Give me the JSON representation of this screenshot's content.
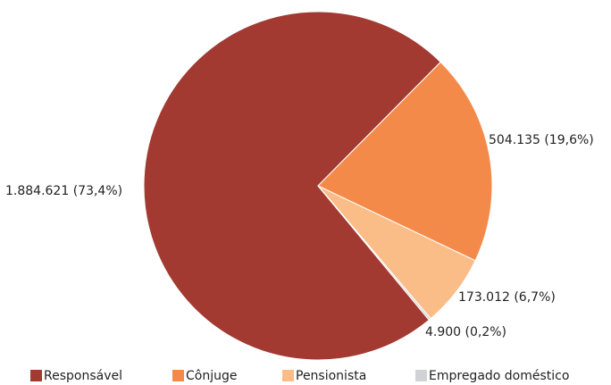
{
  "chart_data": {
    "type": "pie",
    "categories": [
      "Responsável",
      "Cônjuge",
      "Pensionista",
      "Empregado doméstico"
    ],
    "values": [
      1884621,
      504135,
      173012,
      4900
    ],
    "value_labels": [
      "1.884.621 (73,4%)",
      "504.135 (19,6%)",
      "173.012 (6,7%)",
      "4.900 (0,2%)"
    ],
    "colors": [
      "#a23a32",
      "#f48a4a",
      "#fbbd88",
      "#d0d3d6"
    ],
    "legend": "bottom"
  }
}
